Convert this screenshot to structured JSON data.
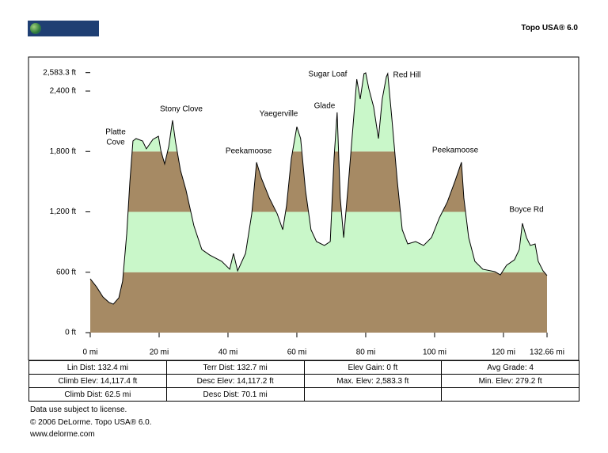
{
  "header": {
    "logo": "DELORME",
    "product": "Topo USA® 6.0"
  },
  "chart_data": {
    "type": "area",
    "x": [
      0,
      1.8,
      3.7,
      5.5,
      6.7,
      8.3,
      9.4,
      10.6,
      11.5,
      12.4,
      13.3,
      15.2,
      16.3,
      18.2,
      19.8,
      20.5,
      21.6,
      22.8,
      23.9,
      24.8,
      26.2,
      27.8,
      30.1,
      32.4,
      34.7,
      38.2,
      40.5,
      41.6,
      42.8,
      45.1,
      46.9,
      48.3,
      49.7,
      52.0,
      54.3,
      55.9,
      57.0,
      58.4,
      60.0,
      61.1,
      62.5,
      64.1,
      65.7,
      68.0,
      69.7,
      70.8,
      71.7,
      72.6,
      73.6,
      74.9,
      76.3,
      77.4,
      78.4,
      79.5,
      80.0,
      80.9,
      82.3,
      83.7,
      84.8,
      86.0,
      86.4,
      87.6,
      89.2,
      90.6,
      92.2,
      94.5,
      96.8,
      99.1,
      101.4,
      103.7,
      106.0,
      107.8,
      108.5,
      109.9,
      111.7,
      114.0,
      117.5,
      119.1,
      120.9,
      123.2,
      124.6,
      125.5,
      126.7,
      127.8,
      129.2,
      130.1,
      131.5,
      132.66
    ],
    "values": [
      535,
      456,
      354,
      299,
      283,
      346,
      511,
      984,
      1495,
      1904,
      1928,
      1904,
      1826,
      1920,
      1951,
      1810,
      1676,
      1849,
      2109,
      1889,
      1613,
      1416,
      1062,
      826,
      771,
      708,
      630,
      787,
      614,
      787,
      1180,
      1692,
      1534,
      1338,
      1180,
      1023,
      1259,
      1731,
      2046,
      1928,
      1416,
      1023,
      905,
      866,
      905,
      1731,
      2188,
      1338,
      944,
      1456,
      2046,
      2518,
      2321,
      2573,
      2581,
      2424,
      2243,
      1928,
      2321,
      2542,
      2573,
      2125,
      1495,
      1023,
      881,
      905,
      866,
      944,
      1141,
      1298,
      1511,
      1692,
      1338,
      944,
      708,
      630,
      606,
      574,
      669,
      724,
      826,
      1086,
      944,
      866,
      881,
      708,
      614,
      567
    ],
    "band_colors": [
      "#a68a64",
      "#c9f7c9"
    ],
    "line_color": "#000000",
    "xlim": [
      0,
      132.66
    ],
    "xticks": [
      {
        "value": 0,
        "label": "0 mi"
      },
      {
        "value": 20,
        "label": "20 mi"
      },
      {
        "value": 40,
        "label": "40 mi"
      },
      {
        "value": 60,
        "label": "60 mi"
      },
      {
        "value": 80,
        "label": "80 mi"
      },
      {
        "value": 100,
        "label": "100 mi"
      },
      {
        "value": 120,
        "label": "120 mi"
      },
      {
        "value": 132.66,
        "label": "132.66 mi"
      }
    ],
    "ylim": [
      0,
      2583.3
    ],
    "yticks": [
      {
        "value": 0,
        "label": "0 ft"
      },
      {
        "value": 600,
        "label": "600 ft"
      },
      {
        "value": 1200,
        "label": "1,200 ft"
      },
      {
        "value": 1800,
        "label": "1,800 ft"
      },
      {
        "value": 2400,
        "label": "2,400 ft"
      },
      {
        "value": 2583.3,
        "label": "2,583.3 ft"
      }
    ],
    "annotations": [
      {
        "lines": [
          "Platte",
          "Cove"
        ]
      },
      {
        "lines": [
          "Stony Clove"
        ]
      },
      {
        "lines": [
          "Peekamoose"
        ]
      },
      {
        "lines": [
          "Yaegerville"
        ]
      },
      {
        "lines": [
          "Glade"
        ]
      },
      {
        "lines": [
          "Sugar Loaf"
        ]
      },
      {
        "lines": [
          "Red Hill"
        ]
      },
      {
        "lines": [
          "Peekamoose"
        ]
      },
      {
        "lines": [
          "Boyce Rd"
        ]
      }
    ]
  },
  "stats": {
    "rows": [
      [
        "Lin Dist: 132.4 mi",
        "Terr Dist: 132.7 mi",
        "Elev Gain: 0 ft",
        "Avg Grade: 4"
      ],
      [
        "Climb Elev: 14,117.4 ft",
        "Desc Elev: 14,117.2 ft",
        "Max. Elev: 2,583.3 ft",
        "Min. Elev: 279.2 ft"
      ],
      [
        "Climb Dist: 62.5 mi",
        "Desc Dist: 70.1 mi"
      ]
    ]
  },
  "footer": [
    "Data use subject to license.",
    "© 2006 DeLorme. Topo USA® 6.0.",
    "www.delorme.com"
  ]
}
